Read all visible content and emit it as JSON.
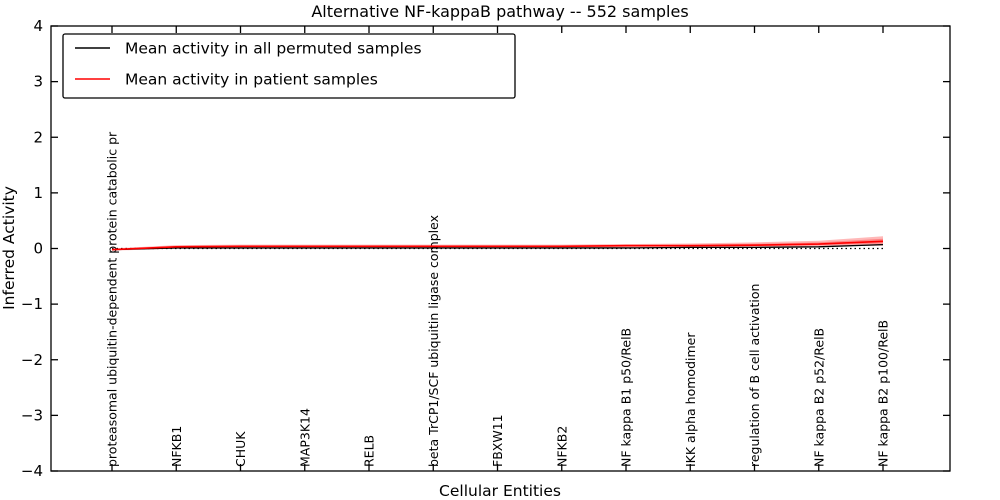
{
  "chart_data": {
    "type": "line",
    "title": "Alternative NF-kappaB pathway -- 552 samples",
    "xlabel": "Cellular Entities",
    "ylabel": "Inferred Activity",
    "ylim": [
      -4,
      4
    ],
    "grid": false,
    "legend_position": "upper left",
    "zero_reference_line": {
      "y": 0,
      "style": "dotted",
      "color": "#000000"
    },
    "yticks": [
      {
        "v": 4,
        "label": "4"
      },
      {
        "v": 3,
        "label": "3"
      },
      {
        "v": 2,
        "label": "2"
      },
      {
        "v": 1,
        "label": "1"
      },
      {
        "v": 0,
        "label": "0"
      },
      {
        "v": -1,
        "label": "−1"
      },
      {
        "v": -2,
        "label": "−2"
      },
      {
        "v": -3,
        "label": "−3"
      },
      {
        "v": -4,
        "label": "−4"
      }
    ],
    "categories": [
      "proteasomal ubiquitin-dependent protein catabolic pr",
      "NFKB1",
      "CHUK",
      "MAP3K14",
      "RELB",
      "beta TrCP1/SCF ubiquitin ligase complex",
      "FBXW11",
      "NFKB2",
      "NF kappa B1 p50/RelB",
      "IKK alpha homodimer",
      "regulation of B cell activation",
      "NF kappa B2 p52/RelB",
      "NF kappa B2 p100/RelB"
    ],
    "series": [
      {
        "name": "Mean activity in all permuted samples",
        "color": "#000000",
        "values": [
          -0.02,
          0.01,
          0.01,
          0.01,
          0.01,
          0.01,
          0.01,
          0.01,
          0.01,
          0.02,
          0.02,
          0.03,
          0.07
        ]
      },
      {
        "name": "Mean activity in patient samples",
        "color": "#ff0000",
        "values": [
          -0.02,
          0.03,
          0.04,
          0.04,
          0.04,
          0.04,
          0.04,
          0.04,
          0.05,
          0.05,
          0.06,
          0.08,
          0.13
        ],
        "band_lower": [
          -0.04,
          0.0,
          0.01,
          0.01,
          0.01,
          0.01,
          0.01,
          0.01,
          0.02,
          0.02,
          0.03,
          0.04,
          0.05
        ],
        "band_upper": [
          0.0,
          0.06,
          0.07,
          0.07,
          0.07,
          0.07,
          0.07,
          0.07,
          0.08,
          0.09,
          0.11,
          0.14,
          0.22
        ],
        "band_color": "#ff0000",
        "band_opacity": 0.28
      }
    ]
  }
}
